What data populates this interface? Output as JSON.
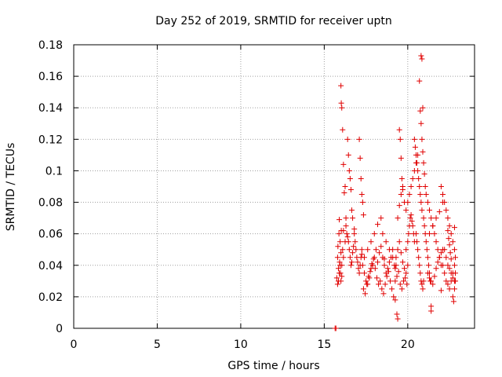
{
  "chart_data": {
    "type": "scatter",
    "title": "Day 252 of 2019, SRMTID for receiver uptn",
    "xlabel": "GPS time / hours",
    "ylabel": "SRMTID / TECUs",
    "xlim": [
      0,
      24
    ],
    "ylim": [
      0,
      0.18
    ],
    "xticks": [
      "0",
      "5",
      "10",
      "15",
      "20"
    ],
    "xtick_values": [
      0,
      5,
      10,
      15,
      20
    ],
    "yticks": [
      "0",
      "0.02",
      "0.04",
      "0.06",
      "0.08",
      "0.1",
      "0.12",
      "0.14",
      "0.16",
      "0.18"
    ],
    "ytick_values": [
      0,
      0.02,
      0.04,
      0.06,
      0.08,
      0.1,
      0.12,
      0.14,
      0.16,
      0.18
    ],
    "grid": true,
    "marker": "plus",
    "color": "#e00000",
    "series": [
      {
        "x": [
          15.65,
          15.7,
          15.75,
          15.8,
          15.82,
          15.85,
          15.88,
          15.9,
          15.92,
          15.95,
          15.97,
          16.0,
          16.02,
          16.05,
          15.8,
          15.85,
          15.9,
          15.95,
          16.0,
          16.05,
          16.1,
          16.15,
          16.0,
          16.02,
          16.05,
          16.1,
          16.15,
          16.2,
          16.25,
          16.3,
          16.3,
          16.35,
          16.4,
          16.45,
          16.5,
          16.55,
          16.6,
          16.65,
          16.7,
          16.75,
          16.4,
          16.45,
          16.5,
          16.55,
          16.6,
          16.65,
          16.7,
          16.8,
          16.8,
          16.85,
          16.9,
          16.95,
          17.0,
          17.05,
          17.1,
          17.15,
          17.2,
          17.25,
          17.1,
          17.15,
          17.2,
          17.25,
          17.3,
          17.35,
          17.3,
          17.4,
          17.5,
          17.6,
          17.7,
          17.8,
          17.9,
          18.0,
          18.1,
          18.2,
          17.35,
          17.45,
          17.55,
          17.65,
          17.75,
          17.85,
          17.95,
          18.05,
          18.15,
          18.25,
          17.4,
          17.6,
          17.8,
          18.0,
          18.2,
          18.4,
          18.3,
          18.4,
          18.5,
          18.6,
          18.7,
          18.8,
          18.9,
          19.0,
          19.1,
          19.2,
          18.35,
          18.45,
          18.55,
          18.65,
          18.75,
          18.85,
          18.95,
          19.05,
          19.15,
          19.25,
          18.5,
          18.7,
          18.9,
          19.1,
          19.3,
          19.3,
          19.4,
          19.5,
          19.6,
          19.7,
          19.8,
          19.9,
          20.0,
          19.25,
          19.35,
          19.45,
          19.55,
          19.65,
          19.75,
          19.85,
          19.95,
          19.4,
          19.5,
          19.6,
          19.7,
          19.8,
          19.9,
          19.5,
          19.55,
          19.6,
          19.65,
          19.7,
          19.35,
          19.4,
          19.9,
          20.0,
          20.05,
          20.1,
          20.15,
          20.2,
          20.25,
          20.3,
          20.35,
          20.4,
          20.0,
          20.1,
          20.2,
          20.3,
          20.4,
          20.5,
          20.6,
          20.4,
          20.45,
          20.5,
          20.55,
          20.6,
          20.65,
          20.7,
          20.75,
          20.8,
          20.85,
          20.5,
          20.55,
          20.6,
          20.65,
          20.7,
          20.75,
          20.8,
          20.85,
          20.9,
          20.95,
          20.7,
          20.75,
          20.8,
          20.85,
          20.9,
          20.95,
          21.0,
          21.05,
          20.8,
          20.85,
          20.9,
          20.95,
          21.0,
          21.05,
          21.1,
          21.15,
          21.2,
          21.25,
          21.3,
          21.35,
          21.4,
          21.1,
          21.2,
          21.3,
          21.4,
          21.5,
          21.6,
          21.7,
          21.8,
          21.9,
          22.0,
          21.2,
          21.3,
          21.4,
          21.5,
          21.6,
          21.7,
          21.8,
          21.9,
          22.0,
          22.1,
          21.3,
          21.5,
          21.7,
          21.9,
          22.1,
          22.0,
          22.1,
          22.2,
          22.3,
          22.4,
          22.5,
          22.6,
          22.7,
          22.8,
          22.85,
          22.1,
          22.2,
          22.3,
          22.4,
          22.5,
          22.6,
          22.7,
          22.8,
          22.2,
          22.3,
          22.4,
          22.5,
          22.6,
          22.7,
          22.8,
          22.85,
          22.4,
          22.45,
          22.5,
          22.55,
          22.6,
          22.7,
          22.75,
          22.8,
          22.85,
          21.4,
          22.0,
          22.8,
          16.15,
          16.25,
          17.25,
          18.6,
          19.25
        ],
        "y": [
          0.0,
          0.0,
          0.032,
          0.045,
          0.052,
          0.038,
          0.06,
          0.069,
          0.042,
          0.055,
          0.035,
          0.048,
          0.062,
          0.04,
          0.028,
          0.03,
          0.035,
          0.04,
          0.03,
          0.033,
          0.05,
          0.045,
          0.154,
          0.143,
          0.14,
          0.126,
          0.104,
          0.086,
          0.09,
          0.07,
          0.065,
          0.06,
          0.058,
          0.055,
          0.05,
          0.045,
          0.04,
          0.042,
          0.048,
          0.052,
          0.12,
          0.11,
          0.1,
          0.095,
          0.088,
          0.075,
          0.07,
          0.063,
          0.06,
          0.055,
          0.05,
          0.045,
          0.042,
          0.038,
          0.035,
          0.04,
          0.045,
          0.05,
          0.12,
          0.108,
          0.095,
          0.085,
          0.08,
          0.072,
          0.04,
          0.035,
          0.03,
          0.028,
          0.032,
          0.038,
          0.04,
          0.045,
          0.05,
          0.042,
          0.025,
          0.022,
          0.028,
          0.033,
          0.036,
          0.041,
          0.044,
          0.038,
          0.032,
          0.028,
          0.045,
          0.05,
          0.055,
          0.06,
          0.066,
          0.07,
          0.048,
          0.052,
          0.045,
          0.04,
          0.035,
          0.038,
          0.042,
          0.045,
          0.05,
          0.04,
          0.03,
          0.025,
          0.022,
          0.028,
          0.033,
          0.036,
          0.03,
          0.025,
          0.02,
          0.018,
          0.06,
          0.055,
          0.05,
          0.045,
          0.04,
          0.045,
          0.05,
          0.055,
          0.048,
          0.042,
          0.038,
          0.035,
          0.04,
          0.03,
          0.033,
          0.036,
          0.028,
          0.025,
          0.03,
          0.032,
          0.028,
          0.07,
          0.078,
          0.085,
          0.09,
          0.08,
          0.075,
          0.126,
          0.12,
          0.108,
          0.095,
          0.088,
          0.009,
          0.006,
          0.05,
          0.055,
          0.06,
          0.065,
          0.07,
          0.072,
          0.068,
          0.065,
          0.06,
          0.055,
          0.08,
          0.085,
          0.09,
          0.095,
          0.1,
          0.105,
          0.11,
          0.12,
          0.115,
          0.11,
          0.105,
          0.1,
          0.095,
          0.09,
          0.085,
          0.08,
          0.075,
          0.06,
          0.055,
          0.05,
          0.045,
          0.04,
          0.035,
          0.03,
          0.028,
          0.025,
          0.03,
          0.157,
          0.138,
          0.13,
          0.12,
          0.112,
          0.105,
          0.098,
          0.09,
          0.173,
          0.171,
          0.14,
          0.07,
          0.065,
          0.06,
          0.055,
          0.05,
          0.045,
          0.04,
          0.035,
          0.03,
          0.011,
          0.085,
          0.08,
          0.075,
          0.07,
          0.065,
          0.06,
          0.055,
          0.05,
          0.045,
          0.04,
          0.035,
          0.032,
          0.03,
          0.028,
          0.033,
          0.038,
          0.042,
          0.045,
          0.048,
          0.05,
          0.06,
          0.065,
          0.07,
          0.074,
          0.08,
          0.09,
          0.085,
          0.08,
          0.075,
          0.07,
          0.065,
          0.06,
          0.055,
          0.05,
          0.045,
          0.04,
          0.035,
          0.03,
          0.028,
          0.025,
          0.03,
          0.035,
          0.04,
          0.05,
          0.045,
          0.04,
          0.038,
          0.035,
          0.032,
          0.03,
          0.035,
          0.062,
          0.057,
          0.053,
          0.048,
          0.044,
          0.02,
          0.017,
          0.025,
          0.03,
          0.014,
          0.024,
          0.064,
          0.062,
          0.055,
          0.047,
          0.044,
          0.038
        ]
      }
    ]
  }
}
